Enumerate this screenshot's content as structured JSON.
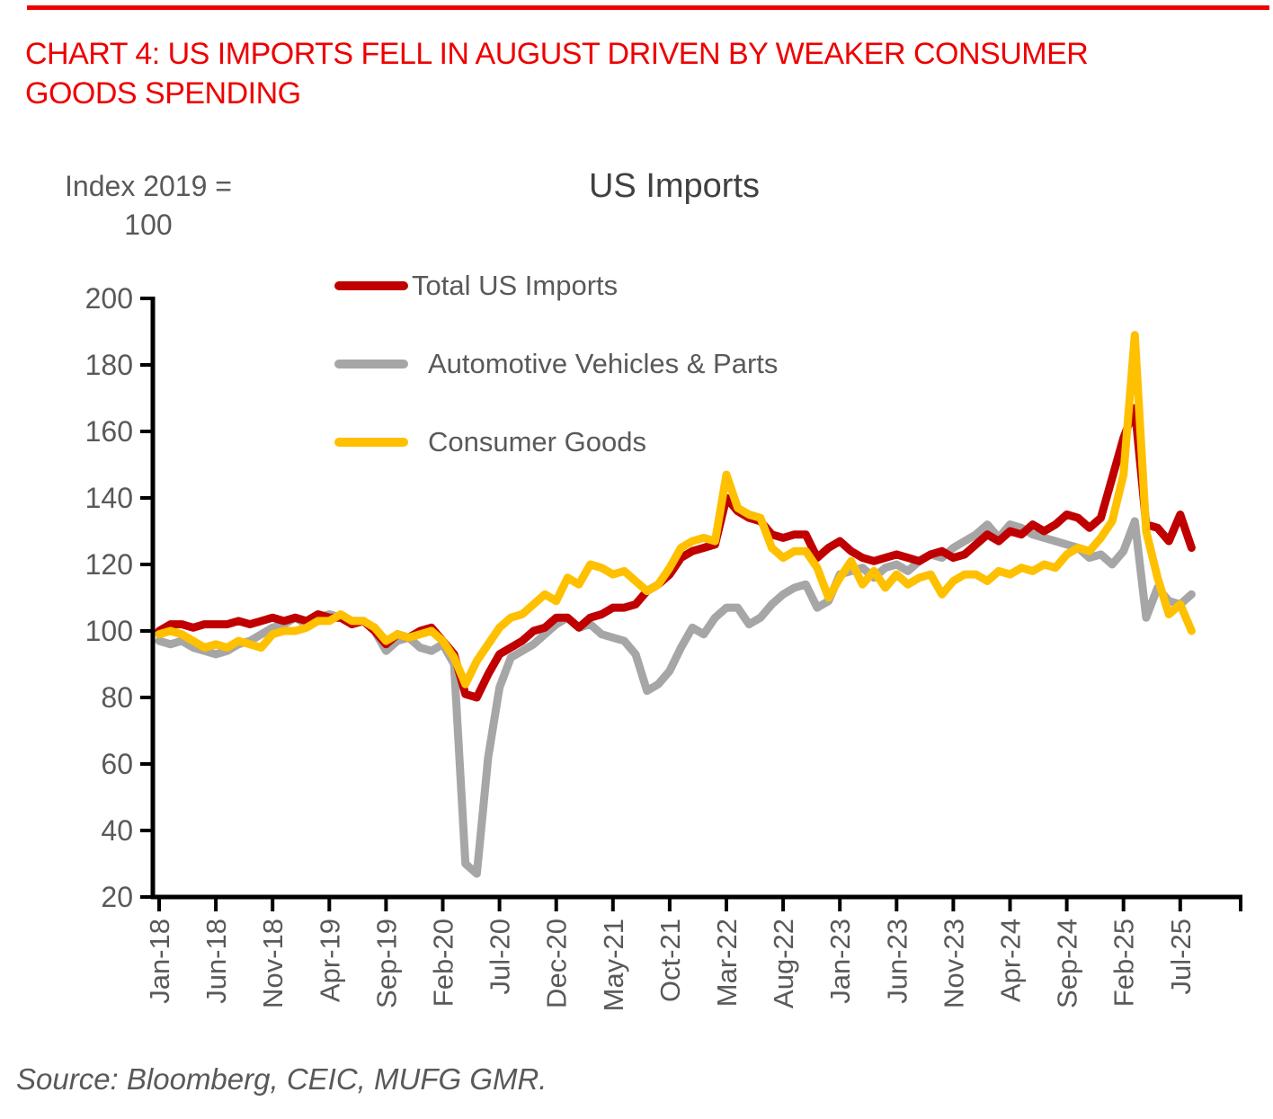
{
  "page": {
    "title_line1": "CHART 4: US IMPORTS FELL IN AUGUST DRIVEN BY WEAKER CONSUMER",
    "title_line2": "GOODS SPENDING",
    "source": "Source: Bloomberg, CEIC, MUFG GMR.",
    "colors": {
      "title_red": "#EE0000",
      "rule_red": "#EE0000",
      "axis_black": "#000000",
      "label_gray": "#595959",
      "chart_title_gray": "#404040"
    }
  },
  "chart_data": {
    "type": "line",
    "title": "US Imports",
    "y_axis_label_line1": "Index 2019 =",
    "y_axis_label_line2": "100",
    "ylim": [
      20,
      200
    ],
    "y_ticks": [
      200,
      180,
      160,
      140,
      120,
      100,
      80,
      60,
      40,
      20
    ],
    "grid": false,
    "legend_position": "inside-top-left",
    "x_frequency": "monthly",
    "x_tick_labels": [
      "Jan-18",
      "Jun-18",
      "Nov-18",
      "Apr-19",
      "Sep-19",
      "Feb-20",
      "Jul-20",
      "Dec-20",
      "May-21",
      "Oct-21",
      "Mar-22",
      "Aug-22",
      "Jan-23",
      "Jun-23",
      "Nov-23",
      "Apr-24",
      "Sep-24",
      "Feb-25",
      "Jul-25"
    ],
    "x": [
      "Jan-18",
      "Feb-18",
      "Mar-18",
      "Apr-18",
      "May-18",
      "Jun-18",
      "Jul-18",
      "Aug-18",
      "Sep-18",
      "Oct-18",
      "Nov-18",
      "Dec-18",
      "Jan-19",
      "Feb-19",
      "Mar-19",
      "Apr-19",
      "May-19",
      "Jun-19",
      "Jul-19",
      "Aug-19",
      "Sep-19",
      "Oct-19",
      "Nov-19",
      "Dec-19",
      "Jan-20",
      "Feb-20",
      "Mar-20",
      "Apr-20",
      "May-20",
      "Jun-20",
      "Jul-20",
      "Aug-20",
      "Sep-20",
      "Oct-20",
      "Nov-20",
      "Dec-20",
      "Jan-21",
      "Feb-21",
      "Mar-21",
      "Apr-21",
      "May-21",
      "Jun-21",
      "Jul-21",
      "Aug-21",
      "Sep-21",
      "Oct-21",
      "Nov-21",
      "Dec-21",
      "Jan-22",
      "Feb-22",
      "Mar-22",
      "Apr-22",
      "May-22",
      "Jun-22",
      "Jul-22",
      "Aug-22",
      "Sep-22",
      "Oct-22",
      "Nov-22",
      "Dec-22",
      "Jan-23",
      "Feb-23",
      "Mar-23",
      "Apr-23",
      "May-23",
      "Jun-23",
      "Jul-23",
      "Aug-23",
      "Sep-23",
      "Oct-23",
      "Nov-23",
      "Dec-23",
      "Jan-24",
      "Feb-24",
      "Mar-24",
      "Apr-24",
      "May-24",
      "Jun-24",
      "Jul-24",
      "Aug-24",
      "Sep-24",
      "Oct-24",
      "Nov-24",
      "Dec-24",
      "Jan-25",
      "Feb-25",
      "Mar-25",
      "Apr-25",
      "May-25",
      "Jun-25",
      "Jul-25",
      "Aug-25"
    ],
    "series": [
      {
        "name": "Total US Imports",
        "color": "#C00000",
        "values": [
          100,
          102,
          102,
          101,
          102,
          102,
          102,
          103,
          102,
          103,
          104,
          103,
          104,
          103,
          105,
          104,
          104,
          102,
          103,
          100,
          96,
          99,
          98,
          100,
          101,
          97,
          93,
          81,
          80,
          87,
          93,
          95,
          97,
          100,
          101,
          104,
          104,
          101,
          104,
          105,
          107,
          107,
          108,
          112,
          114,
          117,
          122,
          124,
          125,
          126,
          140,
          136,
          134,
          133,
          129,
          128,
          129,
          129,
          122,
          125,
          127,
          124,
          122,
          121,
          122,
          123,
          122,
          121,
          123,
          124,
          122,
          123,
          126,
          129,
          127,
          130,
          129,
          132,
          130,
          132,
          135,
          134,
          131,
          134,
          146,
          158,
          167,
          132,
          131,
          127,
          135,
          125
        ]
      },
      {
        "name": "Automotive Vehicles & Parts",
        "color": "#A6A6A6",
        "values": [
          97,
          96,
          97,
          95,
          94,
          93,
          94,
          96,
          97,
          99,
          101,
          102,
          104,
          102,
          104,
          105,
          104,
          103,
          103,
          100,
          94,
          97,
          98,
          95,
          94,
          96,
          90,
          30,
          27,
          62,
          83,
          92,
          94,
          96,
          99,
          102,
          104,
          101,
          102,
          99,
          98,
          97,
          93,
          82,
          84,
          88,
          95,
          101,
          99,
          104,
          107,
          107,
          102,
          104,
          108,
          111,
          113,
          114,
          107,
          109,
          117,
          118,
          119,
          116,
          119,
          120,
          118,
          121,
          123,
          122,
          125,
          127,
          129,
          132,
          128,
          132,
          131,
          129,
          128,
          127,
          126,
          125,
          122,
          123,
          120,
          124,
          133,
          104,
          113,
          109,
          108,
          111
        ]
      },
      {
        "name": "Consumer Goods",
        "color": "#FFC000",
        "values": [
          99,
          100,
          99,
          97,
          95,
          96,
          95,
          97,
          96,
          95,
          99,
          100,
          100,
          101,
          103,
          103,
          105,
          103,
          103,
          101,
          97,
          99,
          98,
          99,
          100,
          97,
          92,
          84,
          91,
          96,
          101,
          104,
          105,
          108,
          111,
          109,
          116,
          114,
          120,
          119,
          117,
          118,
          115,
          112,
          114,
          119,
          125,
          127,
          128,
          127,
          147,
          137,
          135,
          134,
          125,
          122,
          124,
          124,
          119,
          110,
          116,
          121,
          114,
          118,
          113,
          117,
          114,
          116,
          117,
          111,
          115,
          117,
          117,
          115,
          118,
          117,
          119,
          118,
          120,
          119,
          123,
          125,
          124,
          128,
          133,
          147,
          189,
          130,
          116,
          105,
          108,
          100
        ]
      }
    ]
  }
}
